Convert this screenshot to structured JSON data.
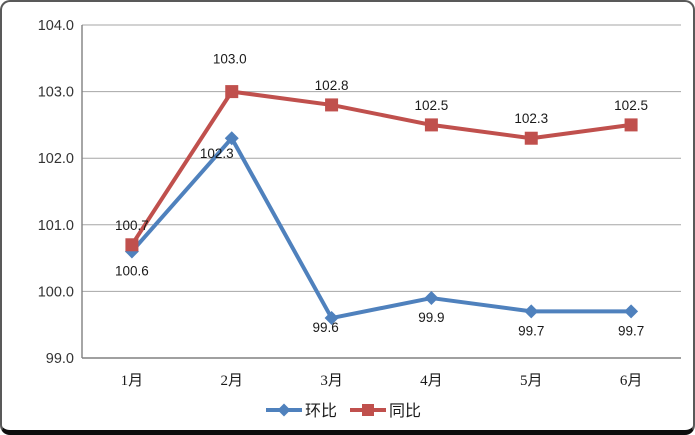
{
  "chart_data": {
    "type": "line",
    "categories": [
      "1月",
      "2月",
      "3月",
      "4月",
      "5月",
      "6月"
    ],
    "series": [
      {
        "key": "huanbi",
        "name": "环比",
        "color": "#4F81BD",
        "marker": "diamond",
        "values": [
          100.6,
          102.3,
          99.6,
          99.9,
          99.7,
          99.7
        ],
        "labels": [
          "100.6",
          "102.3",
          "99.6",
          "99.9",
          "99.7",
          "99.7"
        ],
        "label_positions": [
          "below",
          "left",
          "below-near",
          "below",
          "below",
          "below"
        ]
      },
      {
        "key": "tongbi",
        "name": "同比",
        "color": "#C0504D",
        "marker": "square",
        "values": [
          100.7,
          103.0,
          102.8,
          102.5,
          102.3,
          102.5
        ],
        "labels": [
          "100.7",
          "103.0",
          "102.8",
          "102.5",
          "102.3",
          "102.5"
        ],
        "label_positions": [
          "above",
          "above-far",
          "above",
          "above",
          "above",
          "above"
        ]
      }
    ],
    "ylim": [
      99.0,
      104.0
    ],
    "y_ticks": [
      99.0,
      100.0,
      101.0,
      102.0,
      103.0,
      104.0
    ],
    "y_tick_labels": [
      "99.0",
      "100.0",
      "101.0",
      "102.0",
      "103.0",
      "104.0"
    ],
    "grid": true,
    "data_labels": true,
    "legend_position": "bottom",
    "legend_items": [
      "环比",
      "同比"
    ]
  },
  "colors": {
    "huanbi": "#4F81BD",
    "tongbi": "#C0504D",
    "gridline": "#A6A6A6",
    "axis": "#808080",
    "tick_text": "#333333",
    "label_text": "#1a1a1a",
    "frame_border": "#595959",
    "frame_bottom": "#0d0d0d",
    "background": "#FFFFFF"
  }
}
